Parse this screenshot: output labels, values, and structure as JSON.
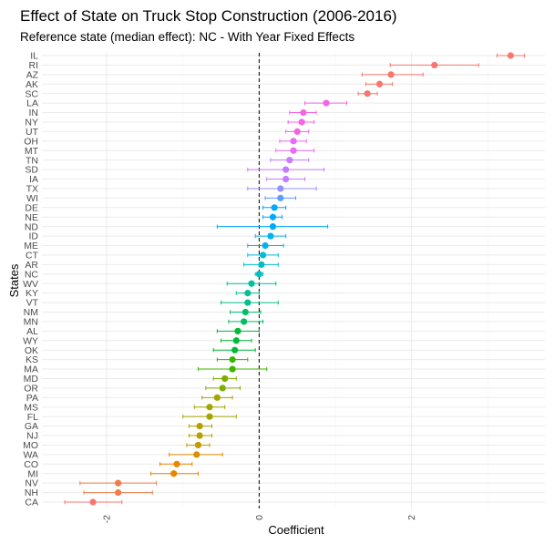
{
  "chart_data": {
    "type": "scatter",
    "title": "Effect of State on Truck Stop Construction (2006-2016)",
    "subtitle": "Reference state (median effect): NC - With Year Fixed Effects",
    "xlabel": "Coefficient",
    "ylabel": "States",
    "xlim": [
      -2.85,
      3.75
    ],
    "x_ticks": [
      -2,
      0,
      2
    ],
    "x_tick_labels": [
      "-2",
      "0",
      "2"
    ],
    "reference_line": 0,
    "grid": true,
    "legend": "none",
    "points": [
      {
        "state": "IL",
        "estimate": 3.3,
        "low": 3.12,
        "high": 3.48,
        "color": "#f8766d"
      },
      {
        "state": "RI",
        "estimate": 2.3,
        "low": 1.72,
        "high": 2.88,
        "color": "#f8766d"
      },
      {
        "state": "AZ",
        "estimate": 1.73,
        "low": 1.35,
        "high": 2.15,
        "color": "#f8766d"
      },
      {
        "state": "AK",
        "estimate": 1.58,
        "low": 1.4,
        "high": 1.75,
        "color": "#f8766d"
      },
      {
        "state": "SC",
        "estimate": 1.42,
        "low": 1.3,
        "high": 1.55,
        "color": "#f8766d"
      },
      {
        "state": "LA",
        "estimate": 0.88,
        "low": 0.6,
        "high": 1.15,
        "color": "#f564e3"
      },
      {
        "state": "IN",
        "estimate": 0.58,
        "low": 0.4,
        "high": 0.75,
        "color": "#f564e3"
      },
      {
        "state": "NY",
        "estimate": 0.56,
        "low": 0.38,
        "high": 0.72,
        "color": "#f564e3"
      },
      {
        "state": "UT",
        "estimate": 0.5,
        "low": 0.35,
        "high": 0.65,
        "color": "#f564e3"
      },
      {
        "state": "OH",
        "estimate": 0.45,
        "low": 0.27,
        "high": 0.62,
        "color": "#e76bf3"
      },
      {
        "state": "MT",
        "estimate": 0.45,
        "low": 0.22,
        "high": 0.72,
        "color": "#e76bf3"
      },
      {
        "state": "TN",
        "estimate": 0.4,
        "low": 0.15,
        "high": 0.65,
        "color": "#c77cff"
      },
      {
        "state": "SD",
        "estimate": 0.35,
        "low": -0.15,
        "high": 0.85,
        "color": "#c77cff"
      },
      {
        "state": "IA",
        "estimate": 0.35,
        "low": 0.1,
        "high": 0.6,
        "color": "#c77cff"
      },
      {
        "state": "TX",
        "estimate": 0.28,
        "low": -0.15,
        "high": 0.75,
        "color": "#9590ff"
      },
      {
        "state": "WI",
        "estimate": 0.28,
        "low": 0.08,
        "high": 0.48,
        "color": "#619cff"
      },
      {
        "state": "DE",
        "estimate": 0.2,
        "low": 0.05,
        "high": 0.35,
        "color": "#00a9ff"
      },
      {
        "state": "NE",
        "estimate": 0.18,
        "low": 0.05,
        "high": 0.3,
        "color": "#00a9ff"
      },
      {
        "state": "ND",
        "estimate": 0.18,
        "low": -0.55,
        "high": 0.9,
        "color": "#00a9ff"
      },
      {
        "state": "ID",
        "estimate": 0.15,
        "low": -0.05,
        "high": 0.35,
        "color": "#00b0f6"
      },
      {
        "state": "ME",
        "estimate": 0.08,
        "low": -0.15,
        "high": 0.32,
        "color": "#00b0f6"
      },
      {
        "state": "CT",
        "estimate": 0.05,
        "low": -0.15,
        "high": 0.25,
        "color": "#00bcd8"
      },
      {
        "state": "AR",
        "estimate": 0.03,
        "low": -0.2,
        "high": 0.25,
        "color": "#00bfc4"
      },
      {
        "state": "NC",
        "estimate": 0.0,
        "low": -0.05,
        "high": 0.05,
        "color": "#00bfc4"
      },
      {
        "state": "WV",
        "estimate": -0.1,
        "low": -0.42,
        "high": 0.22,
        "color": "#00c19a"
      },
      {
        "state": "KY",
        "estimate": -0.15,
        "low": -0.3,
        "high": 0.0,
        "color": "#00c19a"
      },
      {
        "state": "VT",
        "estimate": -0.15,
        "low": -0.5,
        "high": 0.25,
        "color": "#00c08b"
      },
      {
        "state": "NM",
        "estimate": -0.18,
        "low": -0.38,
        "high": 0.02,
        "color": "#00be67"
      },
      {
        "state": "MN",
        "estimate": -0.2,
        "low": -0.4,
        "high": 0.05,
        "color": "#00be67"
      },
      {
        "state": "AL",
        "estimate": -0.28,
        "low": -0.55,
        "high": 0.0,
        "color": "#00ba38"
      },
      {
        "state": "WY",
        "estimate": -0.3,
        "low": -0.5,
        "high": -0.1,
        "color": "#00ba38"
      },
      {
        "state": "OK",
        "estimate": -0.32,
        "low": -0.6,
        "high": -0.05,
        "color": "#00ba38"
      },
      {
        "state": "KS",
        "estimate": -0.35,
        "low": -0.55,
        "high": -0.15,
        "color": "#39b600"
      },
      {
        "state": "MA",
        "estimate": -0.35,
        "low": -0.8,
        "high": 0.1,
        "color": "#39b600"
      },
      {
        "state": "MD",
        "estimate": -0.45,
        "low": -0.6,
        "high": -0.3,
        "color": "#7cae00"
      },
      {
        "state": "OR",
        "estimate": -0.48,
        "low": -0.7,
        "high": -0.25,
        "color": "#7cae00"
      },
      {
        "state": "PA",
        "estimate": -0.55,
        "low": -0.75,
        "high": -0.35,
        "color": "#a3a500"
      },
      {
        "state": "MS",
        "estimate": -0.65,
        "low": -0.85,
        "high": -0.45,
        "color": "#a3a500"
      },
      {
        "state": "FL",
        "estimate": -0.65,
        "low": -1.0,
        "high": -0.3,
        "color": "#a3a500"
      },
      {
        "state": "GA",
        "estimate": -0.78,
        "low": -0.92,
        "high": -0.62,
        "color": "#b79f00"
      },
      {
        "state": "NJ",
        "estimate": -0.78,
        "low": -0.92,
        "high": -0.62,
        "color": "#b79f00"
      },
      {
        "state": "MO",
        "estimate": -0.8,
        "low": -0.95,
        "high": -0.65,
        "color": "#c49a00"
      },
      {
        "state": "WA",
        "estimate": -0.82,
        "low": -1.18,
        "high": -0.48,
        "color": "#de8c00"
      },
      {
        "state": "CO",
        "estimate": -1.08,
        "low": -1.3,
        "high": -0.88,
        "color": "#e58700"
      },
      {
        "state": "MI",
        "estimate": -1.12,
        "low": -1.42,
        "high": -0.8,
        "color": "#e58700"
      },
      {
        "state": "NV",
        "estimate": -1.85,
        "low": -2.35,
        "high": -1.35,
        "color": "#f07c4a"
      },
      {
        "state": "NH",
        "estimate": -1.85,
        "low": -2.3,
        "high": -1.4,
        "color": "#f07c4a"
      },
      {
        "state": "CA",
        "estimate": -2.18,
        "low": -2.55,
        "high": -1.8,
        "color": "#f8766d"
      }
    ]
  }
}
